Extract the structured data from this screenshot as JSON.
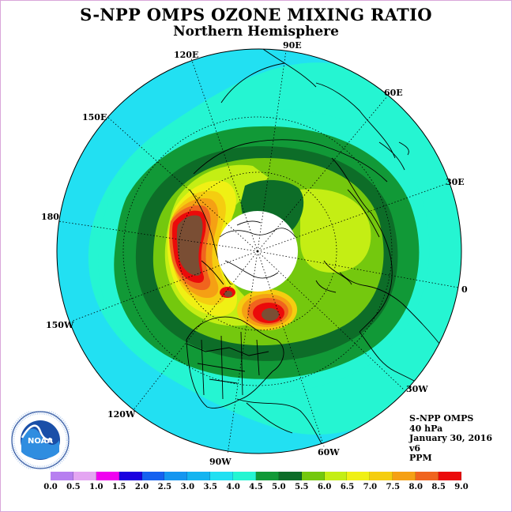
{
  "title": "S-NPP OMPS OZONE MIXING RATIO",
  "subtitle": "Northern Hemisphere",
  "longitude_labels": [
    "90E",
    "60E",
    "30E",
    "0",
    "30W",
    "60W",
    "90W",
    "120W",
    "150W",
    "180",
    "150E",
    "120E"
  ],
  "info": {
    "instrument": "S-NPP OMPS",
    "pressure": "40 hPa",
    "date": "January 30, 2016",
    "version": "v6",
    "units": "PPM"
  },
  "logo": {
    "text": "NOAA",
    "ring_text": "NATIONAL OCEANIC AND ATMOSPHERIC ADMINISTRATION · U.S. DEPARTMENT OF COMMERCE"
  },
  "colorbar": {
    "ticks": [
      "0.0",
      "0.5",
      "1.0",
      "1.5",
      "2.0",
      "2.5",
      "3.0",
      "3.5",
      "4.0",
      "4.5",
      "5.0",
      "5.5",
      "6.0",
      "6.5",
      "7.0",
      "7.5",
      "8.0",
      "8.5",
      "9.0"
    ],
    "colors": [
      "#b77ff0",
      "#e4a6f2",
      "#f000f0",
      "#1a00e0",
      "#1461f0",
      "#1496f0",
      "#14b4f0",
      "#22e0f2",
      "#25f5d2",
      "#119937",
      "#0d6d28",
      "#74c80e",
      "#c4ee14",
      "#f0f014",
      "#f5cd10",
      "#f5a014",
      "#f0641e",
      "#eb0a0a",
      "#7a4e34"
    ]
  }
}
